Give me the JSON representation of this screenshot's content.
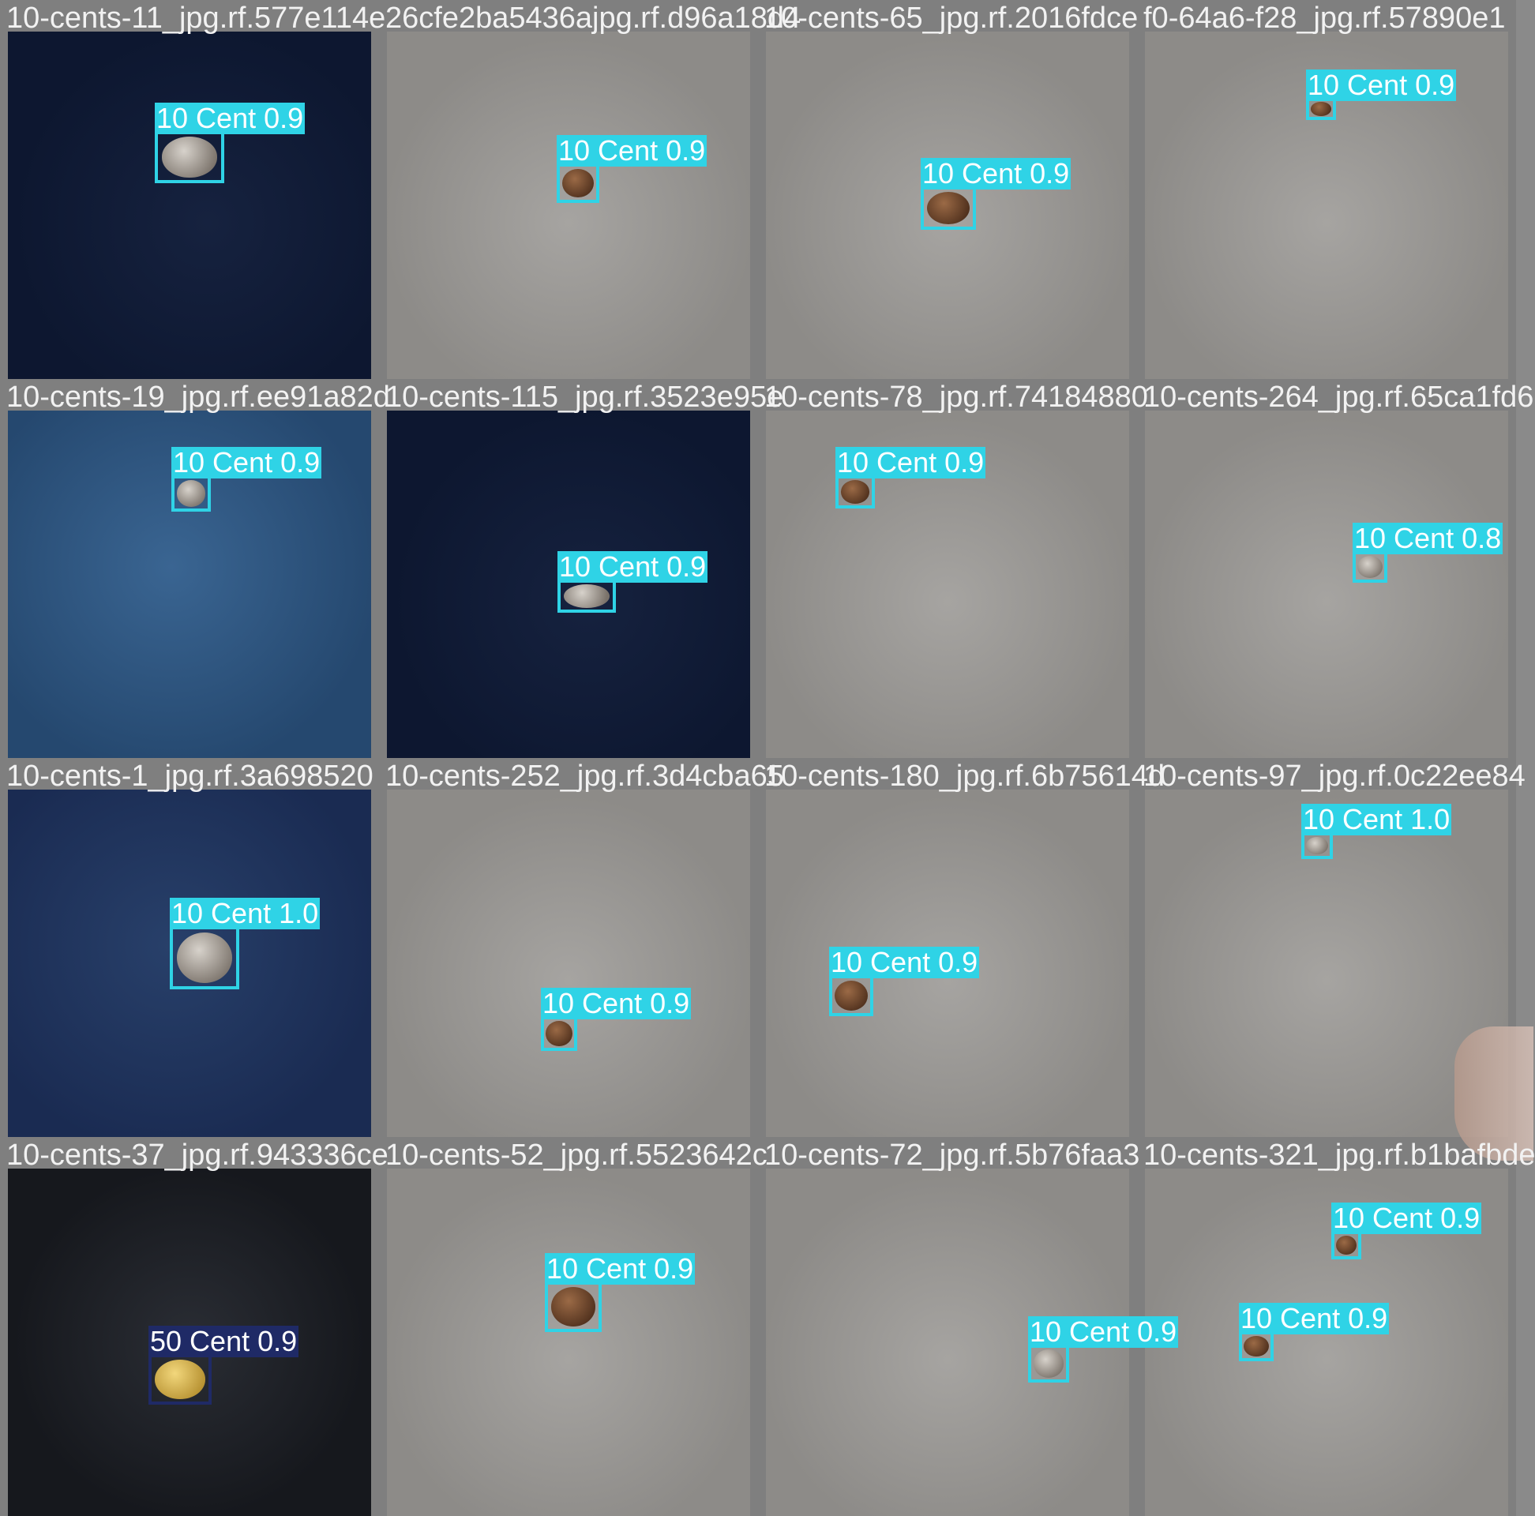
{
  "grid": {
    "rows": 4,
    "cols": 4
  },
  "colors": {
    "box_10_cent": "#2fd3e6",
    "box_50_cent": "#1f2a66",
    "label_text": "#ffffff",
    "filename_text": "#f2f2f2"
  },
  "tiles": [
    {
      "filename": "10-cents-11_jpg.rf.577e114e",
      "background": "dark-navy-fabric",
      "detections": [
        {
          "label": "10 Cent 0.9",
          "class": "10 Cent",
          "confidence": 0.9,
          "coin": "silver"
        }
      ]
    },
    {
      "filename": "26cfe2ba5436ajpg.rf.d96a18d4",
      "background": "grey-fabric",
      "detections": [
        {
          "label": "10 Cent 0.9",
          "class": "10 Cent",
          "confidence": 0.9,
          "coin": "copper"
        }
      ]
    },
    {
      "filename": "10-cents-65_jpg.rf.2016fdce",
      "background": "grey-fabric",
      "detections": [
        {
          "label": "10 Cent 0.9",
          "class": "10 Cent",
          "confidence": 0.9,
          "coin": "copper"
        }
      ]
    },
    {
      "filename": "f0-64a6-f28_jpg.rf.57890e1",
      "background": "grey-fabric",
      "detections": [
        {
          "label": "10 Cent 0.9",
          "class": "10 Cent",
          "confidence": 0.9,
          "coin": "copper"
        }
      ]
    },
    {
      "filename": "10-cents-19_jpg.rf.ee91a82d",
      "background": "blue-fabric",
      "detections": [
        {
          "label": "10 Cent 0.9",
          "class": "10 Cent",
          "confidence": 0.9,
          "coin": "silver"
        }
      ]
    },
    {
      "filename": "10-cents-115_jpg.rf.3523e95e",
      "background": "dark-navy-fabric",
      "detections": [
        {
          "label": "10 Cent 0.9",
          "class": "10 Cent",
          "confidence": 0.9,
          "coin": "silver"
        }
      ]
    },
    {
      "filename": "10-cents-78_jpg.rf.74184880",
      "background": "grey-fabric",
      "detections": [
        {
          "label": "10 Cent 0.9",
          "class": "10 Cent",
          "confidence": 0.9,
          "coin": "copper"
        }
      ]
    },
    {
      "filename": "10-cents-264_jpg.rf.65ca1fd6",
      "background": "grey-fabric",
      "detections": [
        {
          "label": "10 Cent 0.8",
          "class": "10 Cent",
          "confidence": 0.8,
          "coin": "silver"
        }
      ]
    },
    {
      "filename": "10-cents-1_jpg.rf.3a698520",
      "background": "navy-fabric",
      "detections": [
        {
          "label": "10 Cent 1.0",
          "class": "10 Cent",
          "confidence": 1.0,
          "coin": "silver"
        }
      ]
    },
    {
      "filename": "10-cents-252_jpg.rf.3d4cba65",
      "background": "grey-fabric",
      "detections": [
        {
          "label": "10 Cent 0.9",
          "class": "10 Cent",
          "confidence": 0.9,
          "coin": "copper"
        }
      ]
    },
    {
      "filename": "10-cents-180_jpg.rf.6b75614d",
      "background": "grey-fabric",
      "detections": [
        {
          "label": "10 Cent 0.9",
          "class": "10 Cent",
          "confidence": 0.9,
          "coin": "copper"
        }
      ]
    },
    {
      "filename": "10-cents-97_jpg.rf.0c22ee84",
      "background": "grey-fabric",
      "detections": [
        {
          "label": "10 Cent 1.0",
          "class": "10 Cent",
          "confidence": 1.0,
          "coin": "silver"
        }
      ]
    },
    {
      "filename": "10-cents-37_jpg.rf.943336ce",
      "background": "black-fabric",
      "detections": [
        {
          "label": "50 Cent 0.9",
          "class": "50 Cent",
          "confidence": 0.9,
          "coin": "gold"
        }
      ]
    },
    {
      "filename": "10-cents-52_jpg.rf.5523642c",
      "background": "grey-fabric",
      "detections": [
        {
          "label": "10 Cent 0.9",
          "class": "10 Cent",
          "confidence": 0.9,
          "coin": "copper"
        }
      ]
    },
    {
      "filename": "10-cents-72_jpg.rf.5b76faa3",
      "background": "grey-fabric",
      "detections": [
        {
          "label": "10 Cent 0.9",
          "class": "10 Cent",
          "confidence": 0.9,
          "coin": "silver"
        }
      ]
    },
    {
      "filename": "10-cents-321_jpg.rf.b1bafbde",
      "background": "grey-fabric",
      "detections": [
        {
          "label": "10 Cent 0.9",
          "class": "10 Cent",
          "confidence": 0.9,
          "coin": "copper"
        },
        {
          "label": "10 Cent 0.9",
          "class": "10 Cent",
          "confidence": 0.9,
          "coin": "copper"
        }
      ]
    }
  ]
}
